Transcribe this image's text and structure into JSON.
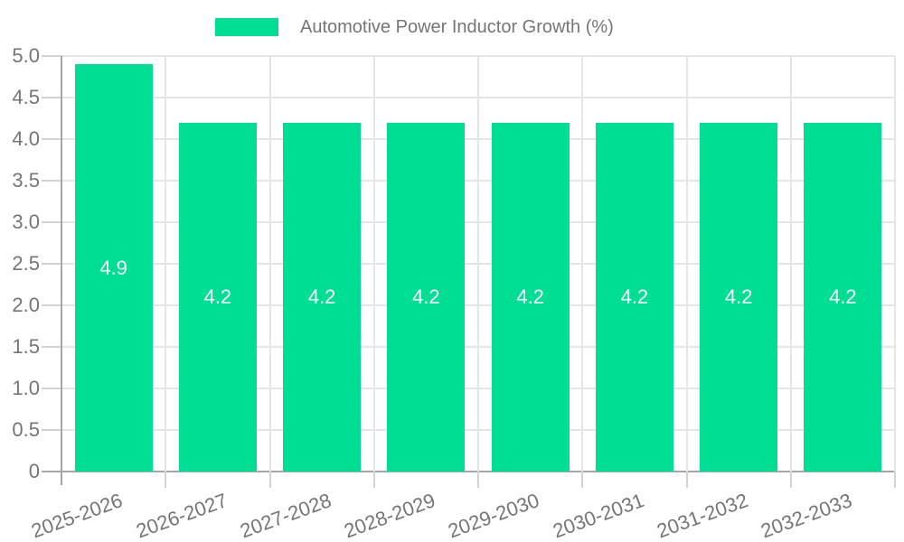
{
  "legend": {
    "label": "Automotive Power Inductor Growth (%)"
  },
  "colors": {
    "bar": "#00de94",
    "text": "#757575",
    "grid": "#e5e5e5",
    "tick": "#d2d2d2",
    "axis": "#a6a6a6",
    "bar_label": "#ffffff",
    "background": "#ffffff"
  },
  "chart_data": {
    "type": "bar",
    "title": "Automotive Power Inductor Growth (%)",
    "legend_entries": [
      "Automotive Power Inductor Growth (%)"
    ],
    "legend_position": "top-center",
    "categories": [
      "2025-2026",
      "2026-2027",
      "2027-2028",
      "2028-2029",
      "2029-2030",
      "2030-2031",
      "2031-2032",
      "2032-2033"
    ],
    "values": [
      4.9,
      4.2,
      4.2,
      4.2,
      4.2,
      4.2,
      4.2,
      4.2
    ],
    "bar_value_labels": [
      "4.9",
      "4.2",
      "4.2",
      "4.2",
      "4.2",
      "4.2",
      "4.2",
      "4.2"
    ],
    "xlabel": "",
    "ylabel": "",
    "ylim": [
      0,
      5
    ],
    "ytick_step": 0.5,
    "y_tick_labels": [
      "0",
      "0.5",
      "1.0",
      "1.5",
      "2.0",
      "2.5",
      "3.0",
      "3.5",
      "4.0",
      "4.5",
      "5.0"
    ],
    "grid": "on",
    "x_label_rotation_deg": -20,
    "value_labels_inside": true
  }
}
